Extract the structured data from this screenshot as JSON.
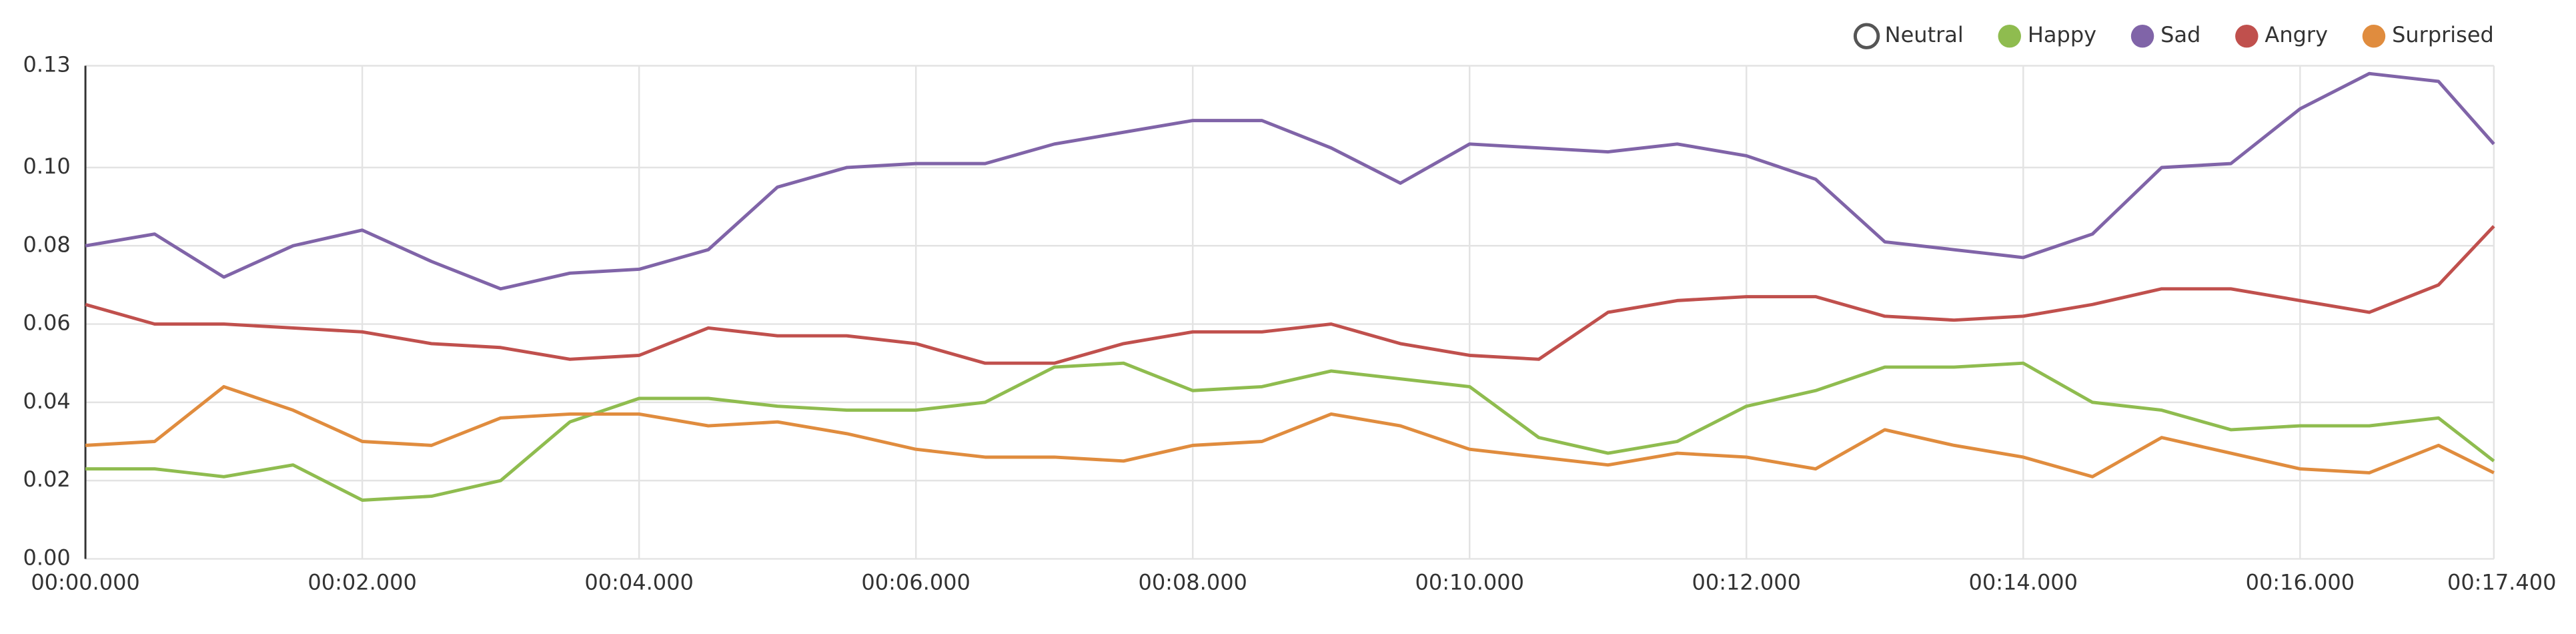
{
  "chart_data": {
    "type": "line",
    "x": [
      0,
      0.5,
      1,
      1.5,
      2,
      2.5,
      3,
      3.5,
      4,
      4.5,
      5,
      5.5,
      6,
      6.5,
      7,
      7.5,
      8,
      8.5,
      9,
      9.5,
      10,
      10.5,
      11,
      11.5,
      12,
      12.5,
      13,
      13.5,
      14,
      14.5,
      15,
      15.5,
      16,
      16.5,
      17,
      17.4
    ],
    "xlim": [
      0,
      17.4
    ],
    "xticks": [
      {
        "value": 0,
        "label": "00:00.000"
      },
      {
        "value": 2,
        "label": "00:02.000"
      },
      {
        "value": 4,
        "label": "00:04.000"
      },
      {
        "value": 6,
        "label": "00:06.000"
      },
      {
        "value": 8,
        "label": "00:08.000"
      },
      {
        "value": 10,
        "label": "00:10.000"
      },
      {
        "value": 12,
        "label": "00:12.000"
      },
      {
        "value": 14,
        "label": "00:14.000"
      },
      {
        "value": 16,
        "label": "00:16.000"
      },
      {
        "value": 17.4,
        "label": "00:17.400"
      }
    ],
    "ylim": [
      0,
      0.126
    ],
    "yticks": [
      {
        "value": 0,
        "label": "0.00"
      },
      {
        "value": 0.02,
        "label": "0.02"
      },
      {
        "value": 0.04,
        "label": "0.04"
      },
      {
        "value": 0.06,
        "label": "0.06"
      },
      {
        "value": 0.08,
        "label": "0.08"
      },
      {
        "value": 0.1,
        "label": "0.10"
      },
      {
        "value": 0.126,
        "label": "0.13"
      }
    ],
    "grid": true,
    "legend": "top-right",
    "series": [
      {
        "name": "Neutral",
        "color": "#555555",
        "hidden": true,
        "values": [
          null,
          null,
          null,
          null,
          null,
          null,
          null,
          null,
          null,
          null,
          null,
          null,
          null,
          null,
          null,
          null,
          null,
          null,
          null,
          null,
          null,
          null,
          null,
          null,
          null,
          null,
          null,
          null,
          null,
          null,
          null,
          null,
          null,
          null,
          null,
          null
        ]
      },
      {
        "name": "Happy",
        "color": "#8fbc4f",
        "values": [
          0.023,
          0.023,
          0.021,
          0.024,
          0.015,
          0.016,
          0.02,
          0.035,
          0.041,
          0.041,
          0.039,
          0.038,
          0.038,
          0.04,
          0.049,
          0.05,
          0.043,
          0.044,
          0.048,
          0.046,
          0.044,
          0.031,
          0.027,
          0.03,
          0.039,
          0.043,
          0.049,
          0.049,
          0.05,
          0.04,
          0.038,
          0.033,
          0.034,
          0.034,
          0.036,
          0.025
        ]
      },
      {
        "name": "Sad",
        "color": "#8064a8",
        "values": [
          0.08,
          0.083,
          0.072,
          0.08,
          0.084,
          0.076,
          0.069,
          0.073,
          0.074,
          0.079,
          0.095,
          0.1,
          0.101,
          0.101,
          0.106,
          0.109,
          0.112,
          0.112,
          0.105,
          0.096,
          0.106,
          0.105,
          0.104,
          0.106,
          0.103,
          0.097,
          0.081,
          0.079,
          0.077,
          0.083,
          0.1,
          0.101,
          0.115,
          0.124,
          0.122,
          0.106
        ]
      },
      {
        "name": "Angry",
        "color": "#c0504d",
        "values": [
          0.065,
          0.06,
          0.06,
          0.059,
          0.058,
          0.055,
          0.054,
          0.051,
          0.052,
          0.059,
          0.057,
          0.057,
          0.055,
          0.05,
          0.05,
          0.055,
          0.058,
          0.058,
          0.06,
          0.055,
          0.052,
          0.051,
          0.063,
          0.066,
          0.067,
          0.067,
          0.062,
          0.061,
          0.062,
          0.065,
          0.069,
          0.069,
          0.066,
          0.063,
          0.07,
          0.085
        ]
      },
      {
        "name": "Surprised",
        "color": "#e08c3e",
        "values": [
          0.029,
          0.03,
          0.044,
          0.038,
          0.03,
          0.029,
          0.036,
          0.037,
          0.037,
          0.034,
          0.035,
          0.032,
          0.028,
          0.026,
          0.026,
          0.025,
          0.029,
          0.03,
          0.037,
          0.034,
          0.028,
          0.026,
          0.024,
          0.027,
          0.026,
          0.023,
          0.033,
          0.029,
          0.026,
          0.021,
          0.031,
          0.027,
          0.023,
          0.022,
          0.029,
          0.022
        ]
      }
    ]
  }
}
